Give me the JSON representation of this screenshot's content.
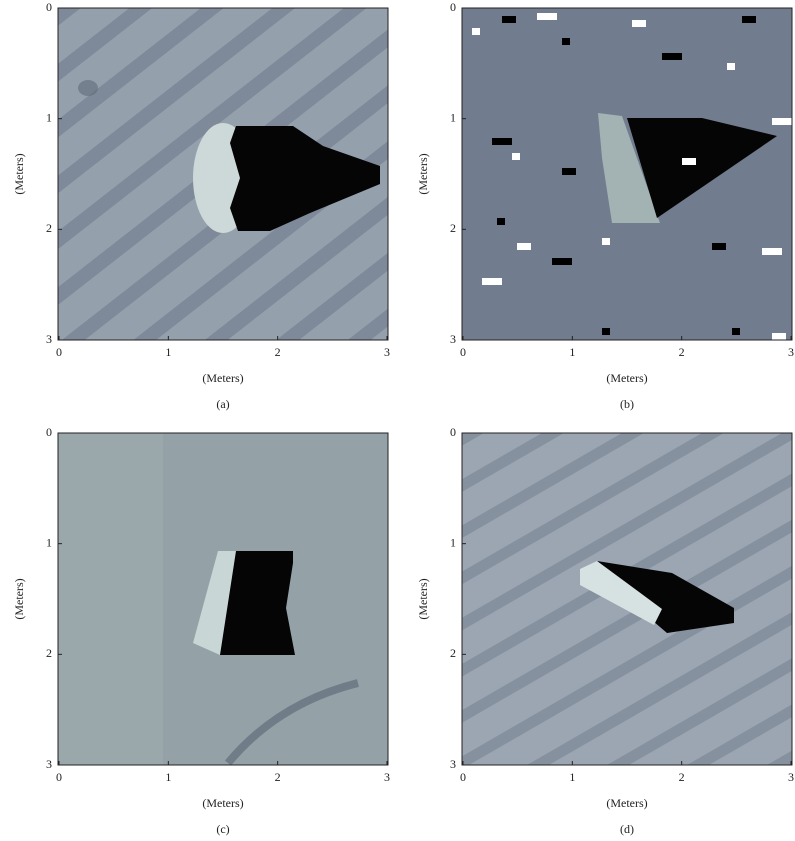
{
  "panels": [
    {
      "label": "(a)",
      "xlabel": "(Meters)",
      "ylabel": "(Meters)",
      "xticks": [
        0,
        1,
        2,
        3
      ],
      "yticks": [
        0,
        1,
        2,
        3
      ]
    },
    {
      "label": "(b)",
      "xlabel": "(Meters)",
      "ylabel": "(Meters)",
      "xticks": [
        0,
        1,
        2,
        3
      ],
      "yticks": [
        0,
        1,
        2,
        3
      ]
    },
    {
      "label": "(c)",
      "xlabel": "(Meters)",
      "ylabel": "(Meters)",
      "xticks": [
        0,
        1,
        2,
        3
      ],
      "yticks": [
        0,
        1,
        2,
        3
      ]
    },
    {
      "label": "(d)",
      "xlabel": "(Meters)",
      "ylabel": "(Meters)",
      "xticks": [
        0,
        1,
        2,
        3
      ],
      "yticks": [
        0,
        1,
        2,
        3
      ]
    }
  ]
}
